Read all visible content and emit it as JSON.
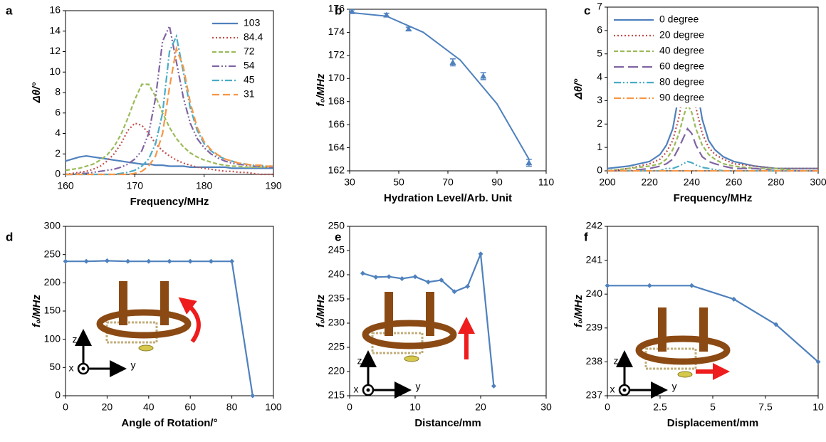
{
  "chart_data": [
    {
      "type": "line",
      "panel_label": "a",
      "xlabel": "Frequency/MHz",
      "ylabel": "Δθ/°",
      "legend": "upper right",
      "xlim": [
        160,
        190
      ],
      "ylim": [
        0,
        16
      ],
      "xticks": [
        160,
        170,
        180,
        190
      ],
      "yticks": [
        0,
        2,
        4,
        6,
        8,
        10,
        12,
        14,
        16
      ],
      "x": [
        160,
        161,
        162,
        163,
        164,
        165,
        166,
        167,
        168,
        169,
        170,
        171,
        172,
        173,
        174,
        175,
        176,
        177,
        178,
        179,
        180,
        181,
        182,
        183,
        184,
        185,
        186,
        187,
        188,
        189,
        190
      ],
      "series": [
        {
          "name": "103",
          "color": "#4f81bd",
          "dash": "none",
          "values": [
            1.3,
            1.5,
            1.7,
            1.8,
            1.7,
            1.6,
            1.5,
            1.4,
            1.3,
            1.2,
            1.1,
            1.0,
            1.0,
            0.9,
            0.9,
            0.8,
            0.8,
            0.8,
            0.7,
            0.7,
            0.7,
            0.7,
            0.7,
            0.7,
            0.6,
            0.6,
            0.6,
            0.6,
            0.6,
            0.6,
            0.6
          ]
        },
        {
          "name": "84.4",
          "color": "#c0504d",
          "dash": "2,3",
          "values": [
            0,
            0.1,
            0.2,
            0.3,
            0.5,
            0.8,
            1.3,
            2.0,
            3.0,
            4.3,
            5.0,
            4.8,
            4.0,
            3.0,
            2.3,
            1.8,
            1.4,
            1.1,
            0.9,
            0.7,
            0.6,
            0.5,
            0.4,
            0.3,
            0.3,
            0.2,
            0.2,
            0.1,
            0,
            0,
            0
          ]
        },
        {
          "name": "72",
          "color": "#9bbb59",
          "dash": "6,3",
          "values": [
            0.4,
            0.5,
            0.6,
            0.8,
            1.0,
            1.4,
            1.9,
            2.7,
            3.9,
            5.5,
            7.3,
            8.8,
            8.8,
            7.6,
            6.0,
            4.6,
            3.5,
            2.7,
            2.1,
            1.7,
            1.4,
            1.2,
            1.0,
            0.9,
            0.8,
            0.8,
            0.7,
            0.7,
            0.7,
            0.7,
            0.7
          ]
        },
        {
          "name": "54",
          "color": "#8064a2",
          "dash": "10,3,2,3,2,3",
          "values": [
            0,
            0,
            0.1,
            0.1,
            0.2,
            0.3,
            0.4,
            0.5,
            0.7,
            1.0,
            1.5,
            2.3,
            4.0,
            7.5,
            13.0,
            14.5,
            11.0,
            7.5,
            5.0,
            3.5,
            2.6,
            2.0,
            1.6,
            1.3,
            1.1,
            1.0,
            0.9,
            0.8,
            0.8,
            0.7,
            0.7
          ]
        },
        {
          "name": "45",
          "color": "#4bacc6",
          "dash": "10,3,2,3",
          "values": [
            0,
            0,
            0,
            0,
            0,
            0,
            0,
            0,
            0.1,
            0.2,
            0.4,
            0.8,
            1.5,
            3.0,
            6.0,
            12.0,
            13.5,
            10.0,
            6.5,
            4.3,
            3.0,
            2.3,
            1.8,
            1.5,
            1.3,
            1.1,
            1.0,
            0.9,
            0.9,
            0.8,
            0.8
          ]
        },
        {
          "name": "31",
          "color": "#f79646",
          "dash": "10,5",
          "values": [
            0,
            0,
            0,
            0,
            0,
            0,
            0,
            0,
            0,
            0,
            0.1,
            0.3,
            0.8,
            1.8,
            4.0,
            8.5,
            12.3,
            10.5,
            7.0,
            4.6,
            3.2,
            2.4,
            1.9,
            1.5,
            1.3,
            1.1,
            1.0,
            0.9,
            0.9,
            0.8,
            0.8
          ]
        }
      ]
    },
    {
      "type": "scatter",
      "panel_label": "b",
      "xlabel": "Hydration Level/Arb. Unit",
      "ylabel": "f₀/MHz",
      "xlim": [
        30,
        110
      ],
      "ylim": [
        162,
        176
      ],
      "xticks": [
        30,
        50,
        70,
        90,
        110
      ],
      "yticks": [
        162,
        164,
        166,
        168,
        170,
        172,
        174,
        176
      ],
      "x": [
        31,
        45,
        54,
        72,
        84.4,
        103
      ],
      "series": [
        {
          "color": "#4f81bd",
          "values": [
            175.8,
            175.5,
            174.3,
            171.4,
            170.2,
            162.7
          ],
          "error": [
            0.15,
            0.15,
            0.15,
            0.3,
            0.3,
            0.3
          ]
        }
      ],
      "trend": {
        "x": [
          31,
          45,
          60,
          75,
          90,
          103
        ],
        "values": [
          175.7,
          175.4,
          174.0,
          171.6,
          167.8,
          163.0
        ]
      }
    },
    {
      "type": "line",
      "panel_label": "c",
      "xlabel": "Frequency/MHz",
      "ylabel": "Δθ/°",
      "legend": "upper right",
      "xlim": [
        200,
        300
      ],
      "ylim": [
        0,
        7
      ],
      "xticks": [
        200,
        220,
        240,
        260,
        280,
        300
      ],
      "yticks": [
        0,
        1,
        2,
        3,
        4,
        5,
        6,
        7
      ],
      "x": [
        200,
        210,
        220,
        225,
        228,
        231,
        234,
        236,
        238,
        240,
        242,
        245,
        248,
        251,
        255,
        260,
        270,
        280,
        290,
        300
      ],
      "series": [
        {
          "name": "0 degree",
          "color": "#4f81bd",
          "dash": "none",
          "values": [
            0.1,
            0.2,
            0.4,
            0.7,
            1.1,
            1.8,
            3.3,
            4.8,
            6.1,
            5.3,
            3.8,
            2.2,
            1.3,
            0.9,
            0.6,
            0.4,
            0.2,
            0.1,
            0.1,
            0.1
          ]
        },
        {
          "name": "20 degree",
          "color": "#c0504d",
          "dash": "2,3",
          "values": [
            0,
            0.1,
            0.3,
            0.5,
            0.8,
            1.3,
            2.3,
            3.4,
            4.2,
            3.7,
            2.7,
            1.6,
            1.0,
            0.7,
            0.5,
            0.3,
            0.2,
            0.1,
            0.1,
            0.1
          ]
        },
        {
          "name": "40 degree",
          "color": "#9bbb59",
          "dash": "6,3",
          "values": [
            0,
            0.1,
            0.2,
            0.3,
            0.5,
            0.9,
            1.6,
            2.3,
            2.85,
            2.5,
            1.8,
            1.1,
            0.7,
            0.5,
            0.3,
            0.2,
            0.1,
            0.1,
            0,
            0
          ]
        },
        {
          "name": "60 degree",
          "color": "#8064a2",
          "dash": "14,6",
          "values": [
            0,
            0,
            0.1,
            0.2,
            0.3,
            0.5,
            1.0,
            1.4,
            1.8,
            1.6,
            1.1,
            0.6,
            0.4,
            0.3,
            0.2,
            0.1,
            0.1,
            0,
            0,
            0
          ]
        },
        {
          "name": "80 degree",
          "color": "#4bacc6",
          "dash": "10,3,2,3,2,3",
          "values": [
            0,
            0,
            0,
            0,
            0.1,
            0.1,
            0.2,
            0.3,
            0.4,
            0.35,
            0.25,
            0.15,
            0.1,
            0.05,
            0,
            0,
            0,
            0,
            0,
            0
          ]
        },
        {
          "name": "90 degree",
          "color": "#f79646",
          "dash": "10,3,2,3",
          "values": [
            0,
            0,
            0,
            0,
            0,
            0,
            0,
            0,
            0,
            0,
            0,
            0,
            0,
            0,
            0,
            0,
            0,
            0,
            0,
            0
          ]
        }
      ]
    },
    {
      "type": "line",
      "panel_label": "d",
      "xlabel": "Angle of Rotation/°",
      "ylabel": "f₀/MHz",
      "markers": true,
      "annotations": [
        "z",
        "x",
        "y"
      ],
      "xlim": [
        0,
        100
      ],
      "ylim": [
        0,
        300
      ],
      "xticks": [
        0,
        20,
        40,
        60,
        80,
        100
      ],
      "yticks": [
        0,
        50,
        100,
        150,
        200,
        250,
        300
      ],
      "x": [
        0,
        10,
        20,
        30,
        40,
        50,
        60,
        70,
        80,
        90
      ],
      "series": [
        {
          "color": "#4f81bd",
          "dash": "none",
          "values": [
            238,
            238,
            239,
            238,
            238,
            238,
            238,
            238,
            238,
            0
          ]
        }
      ]
    },
    {
      "type": "line",
      "panel_label": "e",
      "xlabel": "Distance/mm",
      "ylabel": "f₀/MHz",
      "markers": true,
      "annotations": [
        "z",
        "x",
        "y"
      ],
      "xlim": [
        0,
        30
      ],
      "ylim": [
        215,
        250
      ],
      "xticks": [
        0,
        10,
        20,
        30
      ],
      "yticks": [
        215,
        220,
        225,
        230,
        235,
        240,
        245,
        250
      ],
      "x": [
        2,
        4,
        6,
        8,
        10,
        12,
        14,
        16,
        18,
        20,
        22
      ],
      "series": [
        {
          "color": "#4f81bd",
          "dash": "none",
          "values": [
            240.3,
            239.5,
            239.6,
            239.2,
            239.6,
            238.5,
            238.9,
            236.5,
            237.6,
            244.3,
            217
          ]
        }
      ]
    },
    {
      "type": "line",
      "panel_label": "f",
      "xlabel": "Displacement/mm",
      "ylabel": "f₀/MHz",
      "markers": true,
      "annotations": [
        "z",
        "x",
        "y"
      ],
      "xlim": [
        0,
        10
      ],
      "ylim": [
        237,
        242
      ],
      "xticks": [
        0,
        2.5,
        5,
        7.5,
        10
      ],
      "yticks": [
        237,
        238,
        239,
        240,
        241,
        242
      ],
      "x": [
        0,
        2,
        4,
        6,
        8,
        10
      ],
      "series": [
        {
          "color": "#4f81bd",
          "dash": "none",
          "values": [
            240.25,
            240.25,
            240.25,
            239.85,
            239.1,
            238
          ]
        }
      ]
    }
  ]
}
